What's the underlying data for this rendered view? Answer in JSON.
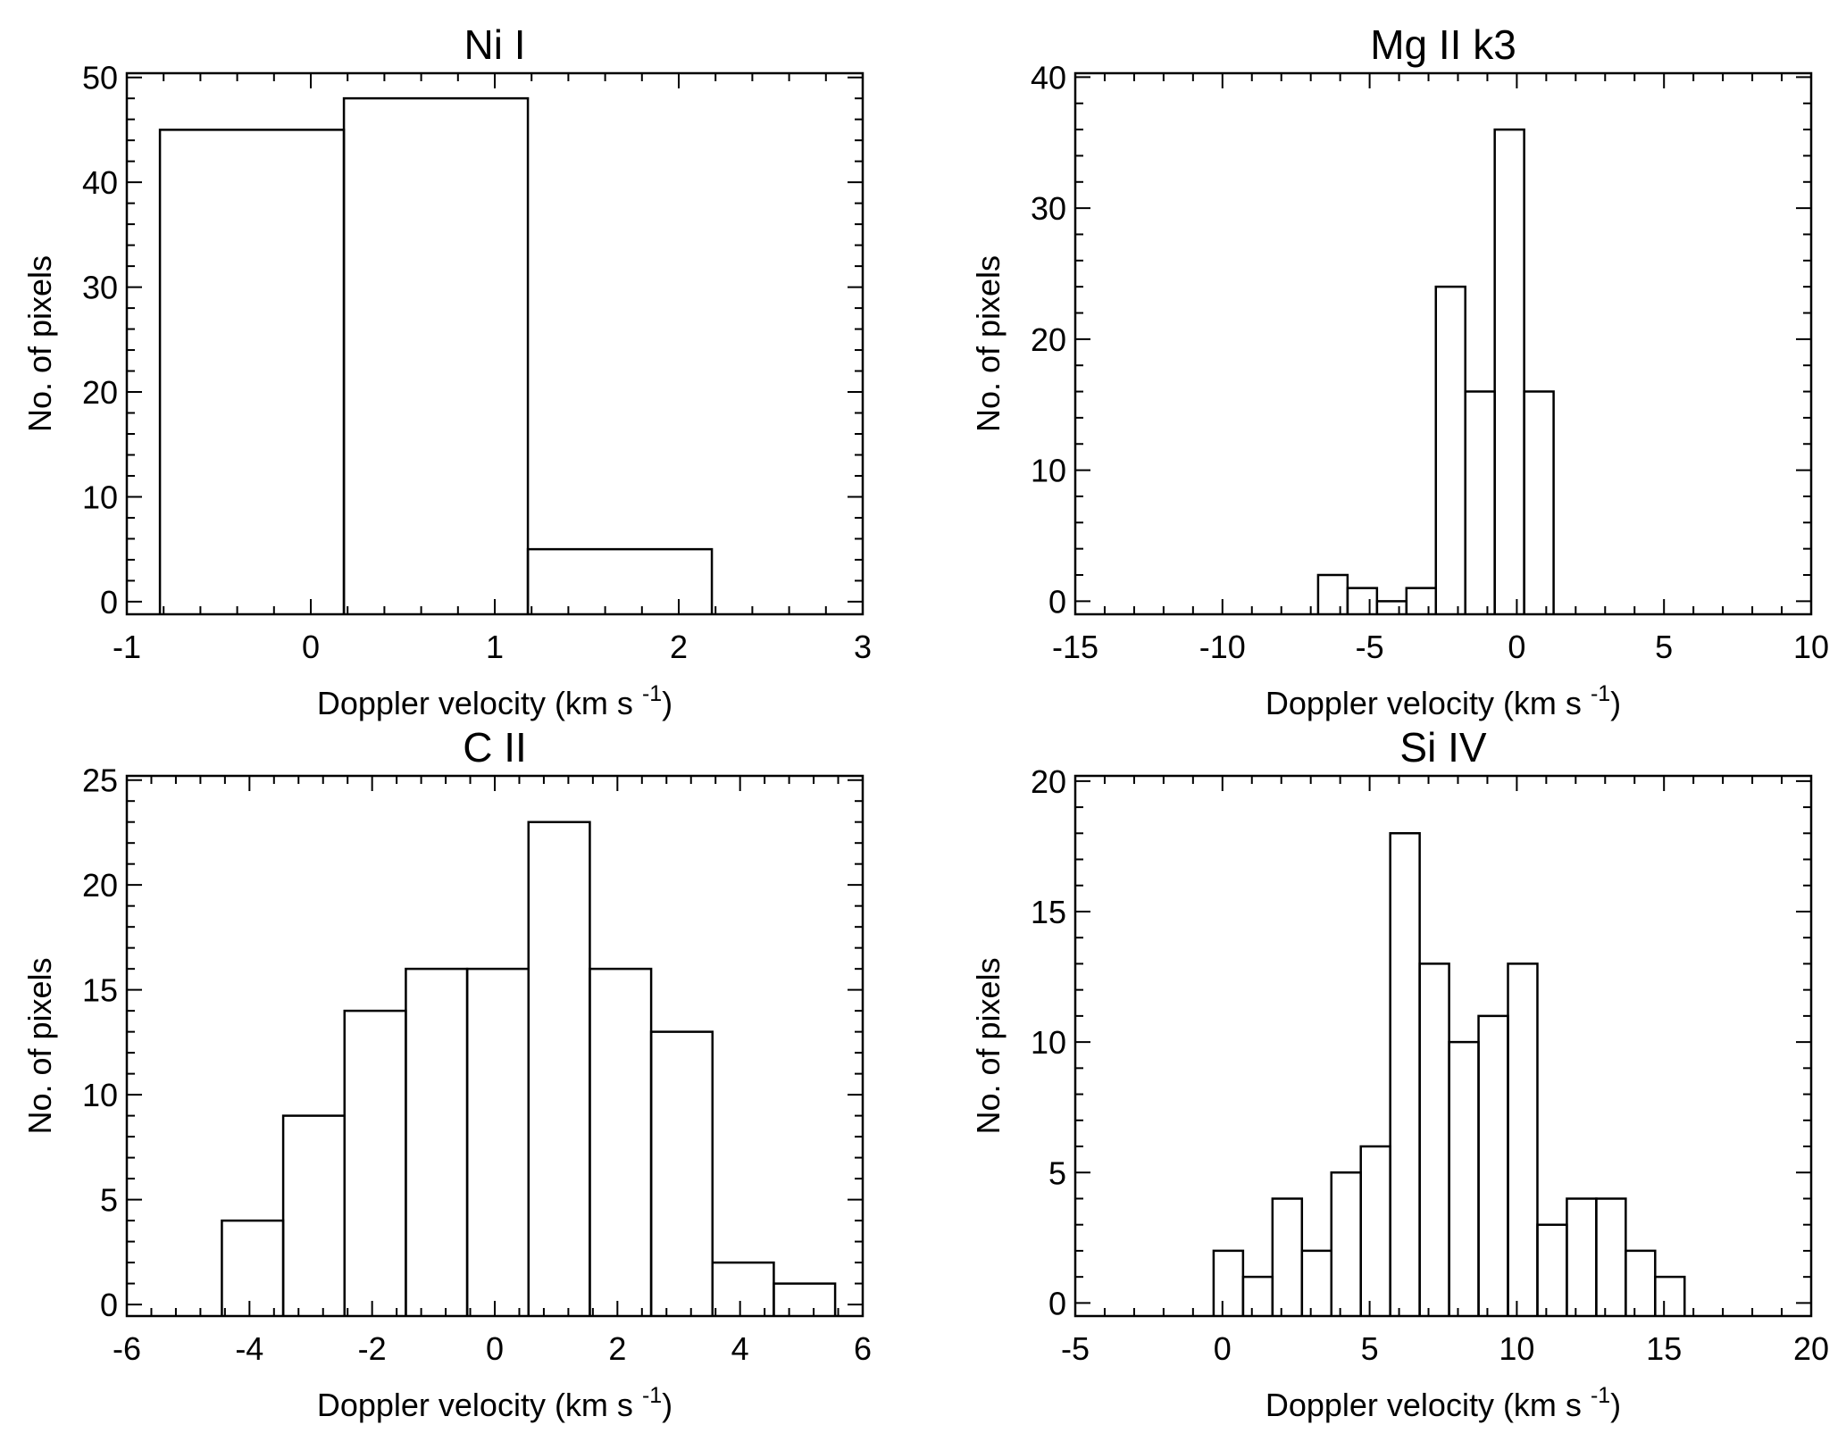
{
  "figure": {
    "line_color": "#000000",
    "background_color": "#ffffff"
  },
  "chart_data": [
    {
      "id": "ni1",
      "type": "histogram",
      "title": "Ni I",
      "xlabel": "Doppler velocity (km s",
      "xlabel_unit_exponent": "-1",
      "xlabel_close": ")",
      "ylabel": "No. of pixels",
      "xlim": [
        -1,
        3
      ],
      "ylim": [
        -1.2,
        50.4
      ],
      "xticks": [
        -1,
        0,
        1,
        2,
        3
      ],
      "xtick_labels": [
        "-1",
        "0",
        "1",
        "2",
        "3"
      ],
      "xminor": 0.2,
      "yticks": [
        0,
        10,
        20,
        30,
        40,
        50
      ],
      "ytick_labels": [
        "0",
        "10",
        "20",
        "30",
        "40",
        "50"
      ],
      "yminor": 2,
      "bin_edges": [
        -0.82,
        0.18,
        1.18,
        2.18
      ],
      "counts": [
        45,
        48,
        5
      ]
    },
    {
      "id": "mg2k3",
      "type": "histogram",
      "title": "Mg II k3",
      "xlabel": "Doppler velocity (km s",
      "xlabel_unit_exponent": "-1",
      "xlabel_close": ")",
      "ylabel": "No. of pixels",
      "xlim": [
        -15,
        10
      ],
      "ylim": [
        -1,
        40.3
      ],
      "xticks": [
        -15,
        -10,
        -5,
        0,
        5,
        10
      ],
      "xtick_labels": [
        "-15",
        "-10",
        "-5",
        "0",
        "5",
        "10"
      ],
      "xminor": 1,
      "yticks": [
        0,
        10,
        20,
        30,
        40
      ],
      "ytick_labels": [
        "0",
        "10",
        "20",
        "30",
        "40"
      ],
      "yminor": 2,
      "bin_edges": [
        -6.75,
        -5.75,
        -4.75,
        -3.75,
        -2.75,
        -1.75,
        -0.75,
        0.25,
        1.25
      ],
      "counts": [
        2,
        1,
        0,
        1,
        24,
        16,
        36,
        16
      ]
    },
    {
      "id": "c2",
      "type": "histogram",
      "title": "C II",
      "xlabel": "Doppler velocity (km s",
      "xlabel_unit_exponent": "-1",
      "xlabel_close": ")",
      "ylabel": "No. of pixels",
      "xlim": [
        -6,
        6
      ],
      "ylim": [
        -0.55,
        25.2
      ],
      "xticks": [
        -6,
        -4,
        -2,
        0,
        2,
        4,
        6
      ],
      "xtick_labels": [
        "-6",
        "-4",
        "-2",
        "0",
        "2",
        "4",
        "6"
      ],
      "xminor": 0.4,
      "yticks": [
        0,
        5,
        10,
        15,
        20,
        25
      ],
      "ytick_labels": [
        "0",
        "5",
        "10",
        "15",
        "20",
        "25"
      ],
      "yminor": 1,
      "bin_edges": [
        -4.45,
        -3.45,
        -2.45,
        -1.45,
        -0.45,
        0.55,
        1.55,
        2.55,
        3.55,
        4.55,
        5.55
      ],
      "counts": [
        4,
        9,
        14,
        16,
        16,
        23,
        16,
        13,
        2,
        1
      ]
    },
    {
      "id": "si4",
      "type": "histogram",
      "title": "Si IV",
      "xlabel": "Doppler velocity (km s",
      "xlabel_unit_exponent": "-1",
      "xlabel_close": ")",
      "ylabel": "No. of pixels",
      "xlim": [
        -5,
        20
      ],
      "ylim": [
        -0.5,
        20.2
      ],
      "xticks": [
        -5,
        0,
        5,
        10,
        15,
        20
      ],
      "xtick_labels": [
        "-5",
        "0",
        "5",
        "10",
        "15",
        "20"
      ],
      "xminor": 1,
      "yticks": [
        0,
        5,
        10,
        15,
        20
      ],
      "ytick_labels": [
        "0",
        "5",
        "10",
        "15",
        "20"
      ],
      "yminor": 1,
      "bin_edges": [
        -0.3,
        0.7,
        1.7,
        2.7,
        3.7,
        4.7,
        5.7,
        6.7,
        7.7,
        8.7,
        9.7,
        10.7,
        11.7,
        12.7,
        13.7,
        14.7,
        15.7
      ],
      "counts": [
        2,
        1,
        4,
        2,
        5,
        6,
        18,
        13,
        10,
        11,
        13,
        3,
        4,
        4,
        2,
        1
      ]
    }
  ]
}
